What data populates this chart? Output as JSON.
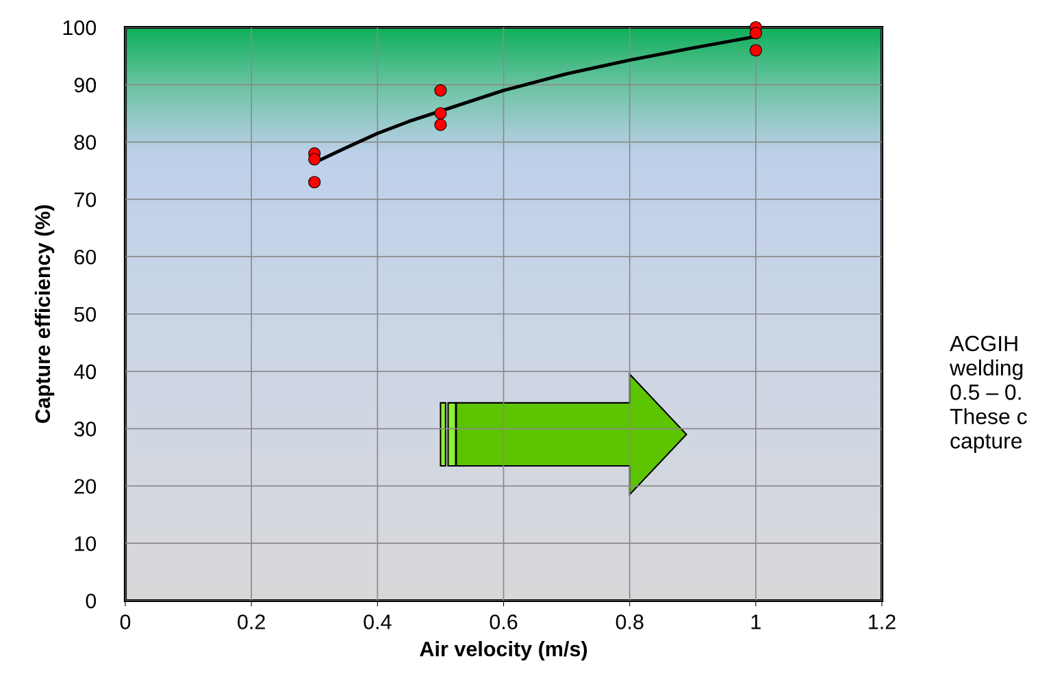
{
  "chart_data": {
    "type": "scatter",
    "xlabel": "Air velocity (m/s)",
    "ylabel": "Capture efficiency (%)",
    "series": [
      {
        "color": "#ff0000",
        "marker": "circle",
        "x": [
          0.3,
          0.3,
          0.3,
          0.5,
          0.5,
          0.5,
          1.0,
          1.0,
          1.0
        ],
        "values": [
          78,
          77,
          73,
          89,
          85,
          83,
          100,
          99,
          96
        ]
      },
      {
        "type": "line",
        "color": "#000000",
        "marker": "none",
        "x": [
          0.3,
          0.35,
          0.4,
          0.45,
          0.5,
          0.6,
          0.7,
          0.8,
          0.9,
          1.0
        ],
        "values": [
          76.4,
          79,
          81.5,
          83.6,
          85.4,
          89,
          91.9,
          94.3,
          96.4,
          98.4
        ]
      }
    ],
    "xlim": [
      0,
      1.2
    ],
    "xticks": [
      0,
      0.2,
      0.4,
      0.6,
      0.8,
      1,
      1.2
    ],
    "ylim": [
      0,
      100
    ],
    "yticks": [
      0,
      10,
      20,
      30,
      40,
      50,
      60,
      70,
      80,
      90,
      100
    ],
    "grid": true,
    "legend": false,
    "annotations": [
      "ACGIH\nwelding\n0.5 – 0.\nThese c\ncapture"
    ]
  }
}
